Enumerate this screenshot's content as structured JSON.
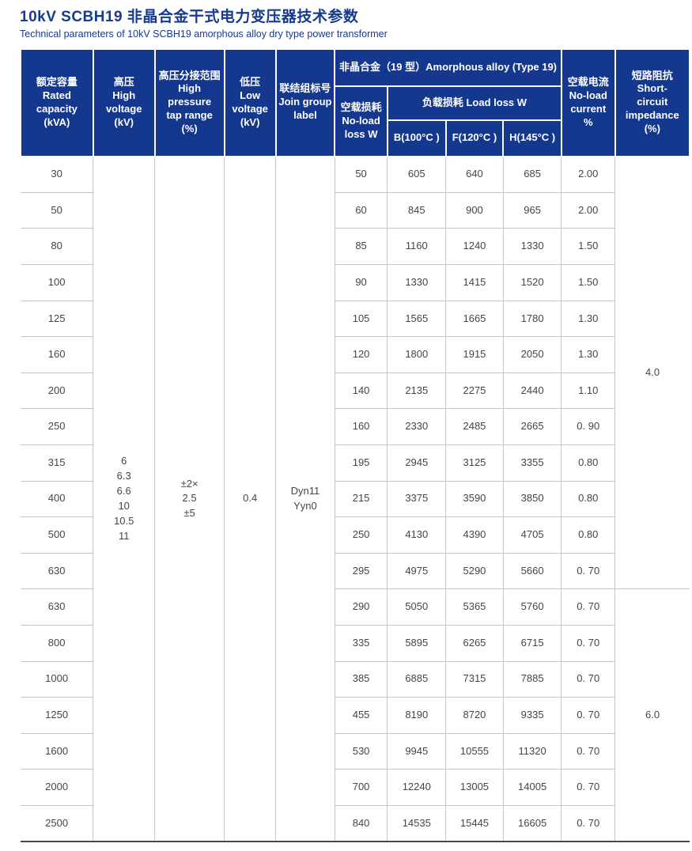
{
  "page": {
    "title": "10kV SCBH19 非晶合金干式电力变压器技术参数",
    "subtitle": "Technical parameters of 10kV SCBH19 amorphous alloy dry type power transformer"
  },
  "colors": {
    "header_bg": "#15388f",
    "title_text": "#173a8c",
    "body_text": "#454545",
    "grid_line": "#c3c6cb",
    "bottom_border": "#4a4a4a"
  },
  "table": {
    "headers": {
      "rated_capacity": "额定容量\nRated capacity\n(kVA)",
      "high_voltage": "高压\nHigh voltage\n(kV)",
      "tap_range": "高压分接范围\nHigh pressure\ntap range\n(%)",
      "low_voltage": "低压\nLow\nvoltage\n(kV)",
      "join_group": "联结组标号\nJoin group\nlabel",
      "amorphous_group": "非晶合金（19 型）Amorphous alloy (Type 19)",
      "no_load_loss": "空载损耗\nNo-load\nloss W",
      "load_loss_group": "负载损耗 Load loss W",
      "load_loss_b": "B(100°C )",
      "load_loss_f": "F(120°C )",
      "load_loss_h": "H(145°C )",
      "no_load_current": "空载电流\nNo-load\ncurrent\n%",
      "short_circuit_impedance": "短路阻抗\nShort-\ncircuit\nimpedance\n(%)"
    },
    "merged_cells": {
      "high_voltage": "6\n6.3\n6.6\n10\n10.5\n11",
      "tap_range": "±2×\n2.5\n±5",
      "low_voltage": "0.4",
      "join_group": "Dyn11\nYyn0"
    },
    "impedance_groups": [
      {
        "value": "4.0",
        "row_span": 12
      },
      {
        "value": "6.0",
        "row_span": 7
      }
    ],
    "rows": [
      {
        "capacity": "30",
        "no_load_loss": "50",
        "b": "605",
        "f": "640",
        "h": "685",
        "no_load_current": "2.00"
      },
      {
        "capacity": "50",
        "no_load_loss": "60",
        "b": "845",
        "f": "900",
        "h": "965",
        "no_load_current": "2.00"
      },
      {
        "capacity": "80",
        "no_load_loss": "85",
        "b": "1160",
        "f": "1240",
        "h": "1330",
        "no_load_current": "1.50"
      },
      {
        "capacity": "100",
        "no_load_loss": "90",
        "b": "1330",
        "f": "1415",
        "h": "1520",
        "no_load_current": "1.50"
      },
      {
        "capacity": "125",
        "no_load_loss": "105",
        "b": "1565",
        "f": "1665",
        "h": "1780",
        "no_load_current": "1.30"
      },
      {
        "capacity": "160",
        "no_load_loss": "120",
        "b": "1800",
        "f": "1915",
        "h": "2050",
        "no_load_current": "1.30"
      },
      {
        "capacity": "200",
        "no_load_loss": "140",
        "b": "2135",
        "f": "2275",
        "h": "2440",
        "no_load_current": "1.10"
      },
      {
        "capacity": "250",
        "no_load_loss": "160",
        "b": "2330",
        "f": "2485",
        "h": "2665",
        "no_load_current": "0. 90"
      },
      {
        "capacity": "315",
        "no_load_loss": "195",
        "b": "2945",
        "f": "3125",
        "h": "3355",
        "no_load_current": "0.80"
      },
      {
        "capacity": "400",
        "no_load_loss": "215",
        "b": "3375",
        "f": "3590",
        "h": "3850",
        "no_load_current": "0.80"
      },
      {
        "capacity": "500",
        "no_load_loss": "250",
        "b": "4130",
        "f": "4390",
        "h": "4705",
        "no_load_current": "0.80"
      },
      {
        "capacity": "630",
        "no_load_loss": "295",
        "b": "4975",
        "f": "5290",
        "h": "5660",
        "no_load_current": "0. 70"
      },
      {
        "capacity": "630",
        "no_load_loss": "290",
        "b": "5050",
        "f": "5365",
        "h": "5760",
        "no_load_current": "0. 70"
      },
      {
        "capacity": "800",
        "no_load_loss": "335",
        "b": "5895",
        "f": "6265",
        "h": "6715",
        "no_load_current": "0. 70"
      },
      {
        "capacity": "1000",
        "no_load_loss": "385",
        "b": "6885",
        "f": "7315",
        "h": "7885",
        "no_load_current": "0. 70"
      },
      {
        "capacity": "1250",
        "no_load_loss": "455",
        "b": "8190",
        "f": "8720",
        "h": "9335",
        "no_load_current": "0. 70"
      },
      {
        "capacity": "1600",
        "no_load_loss": "530",
        "b": "9945",
        "f": "10555",
        "h": "11320",
        "no_load_current": "0. 70"
      },
      {
        "capacity": "2000",
        "no_load_loss": "700",
        "b": "12240",
        "f": "13005",
        "h": "14005",
        "no_load_current": "0. 70"
      },
      {
        "capacity": "2500",
        "no_load_loss": "840",
        "b": "14535",
        "f": "15445",
        "h": "16605",
        "no_load_current": "0. 70"
      }
    ]
  }
}
